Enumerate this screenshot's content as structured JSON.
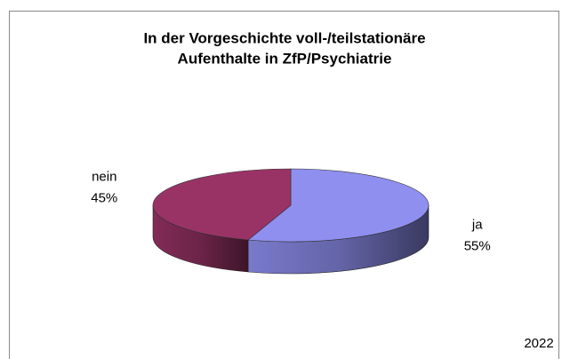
{
  "chart_data": {
    "type": "pie",
    "title": [
      "In der Vorgeschichte voll-/teilstationäre",
      "Aufenthalte in ZfP/Psychiatrie"
    ],
    "categories": [
      "ja",
      "nein"
    ],
    "values": [
      55,
      45
    ],
    "value_labels": [
      "55%",
      "45%"
    ],
    "colors": [
      "#8f8ff0",
      "#993366"
    ],
    "annotation": "2022"
  }
}
